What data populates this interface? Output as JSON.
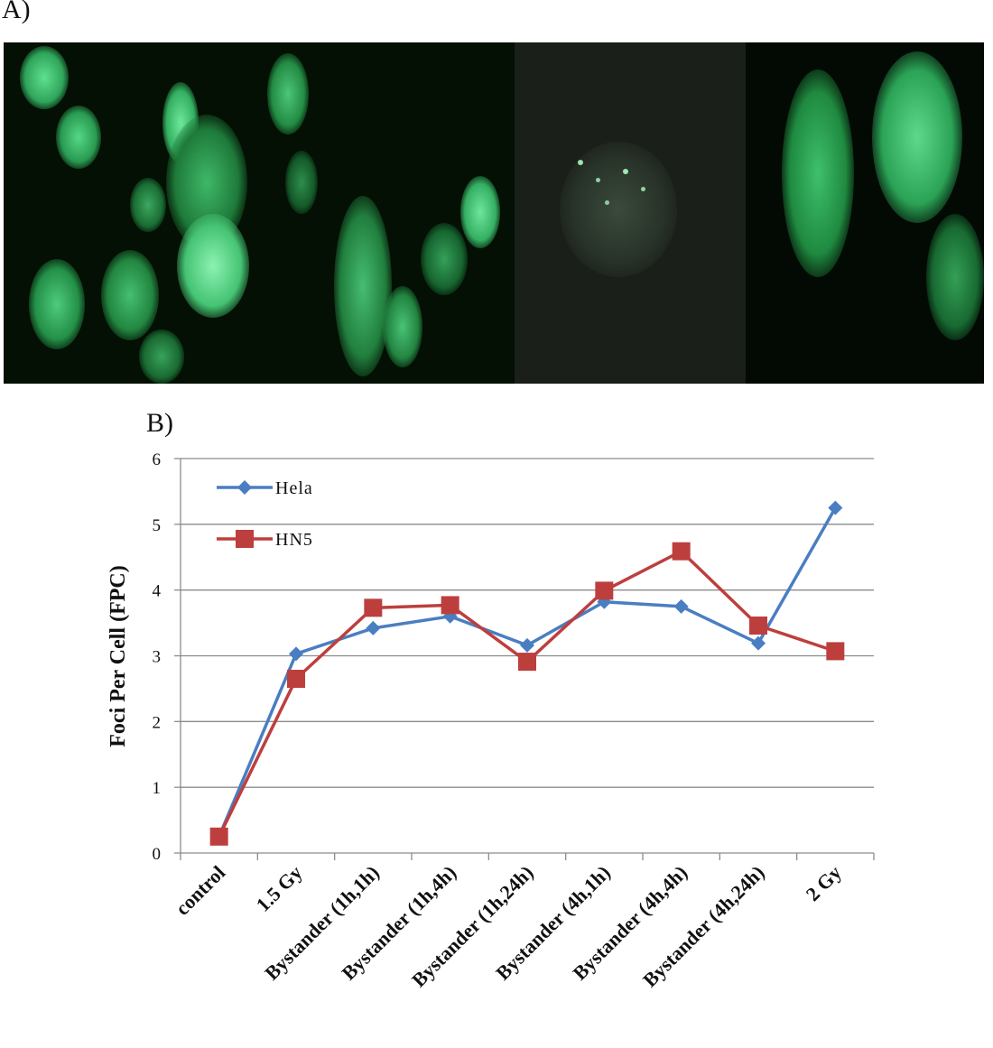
{
  "panel_a_label": "A)",
  "panel_b_label": "B)",
  "colors": {
    "hela": "#4a7ec2",
    "hn5": "#bd3f3d",
    "grid": "#8c8c8c",
    "cell_green": "#3fd27a"
  },
  "chart_data": {
    "type": "line",
    "title": "",
    "xlabel": "",
    "ylabel": "Foci Per Cell (FPC)",
    "ylim": [
      0,
      6
    ],
    "yticks": [
      0,
      1,
      2,
      3,
      4,
      5,
      6
    ],
    "grid": true,
    "legend_position": "top-left",
    "categories": [
      "control",
      "1.5 Gy",
      "Bystander (1h,1h)",
      "Bystander (1h,4h)",
      "Bystander (1h,24h)",
      "Bystander (4h,1h)",
      "Bystander (4h,4h)",
      "Bystander (4h,24h)",
      "2 Gy"
    ],
    "series": [
      {
        "name": "Hela",
        "marker": "diamond",
        "color": "#4a7ec2",
        "values": [
          0.25,
          3.03,
          3.42,
          3.6,
          3.16,
          3.82,
          3.75,
          3.19,
          5.25
        ]
      },
      {
        "name": "HN5",
        "marker": "square",
        "color": "#bd3f3d",
        "values": [
          0.25,
          2.65,
          3.73,
          3.77,
          2.91,
          3.99,
          4.59,
          3.46,
          3.07
        ]
      }
    ]
  }
}
